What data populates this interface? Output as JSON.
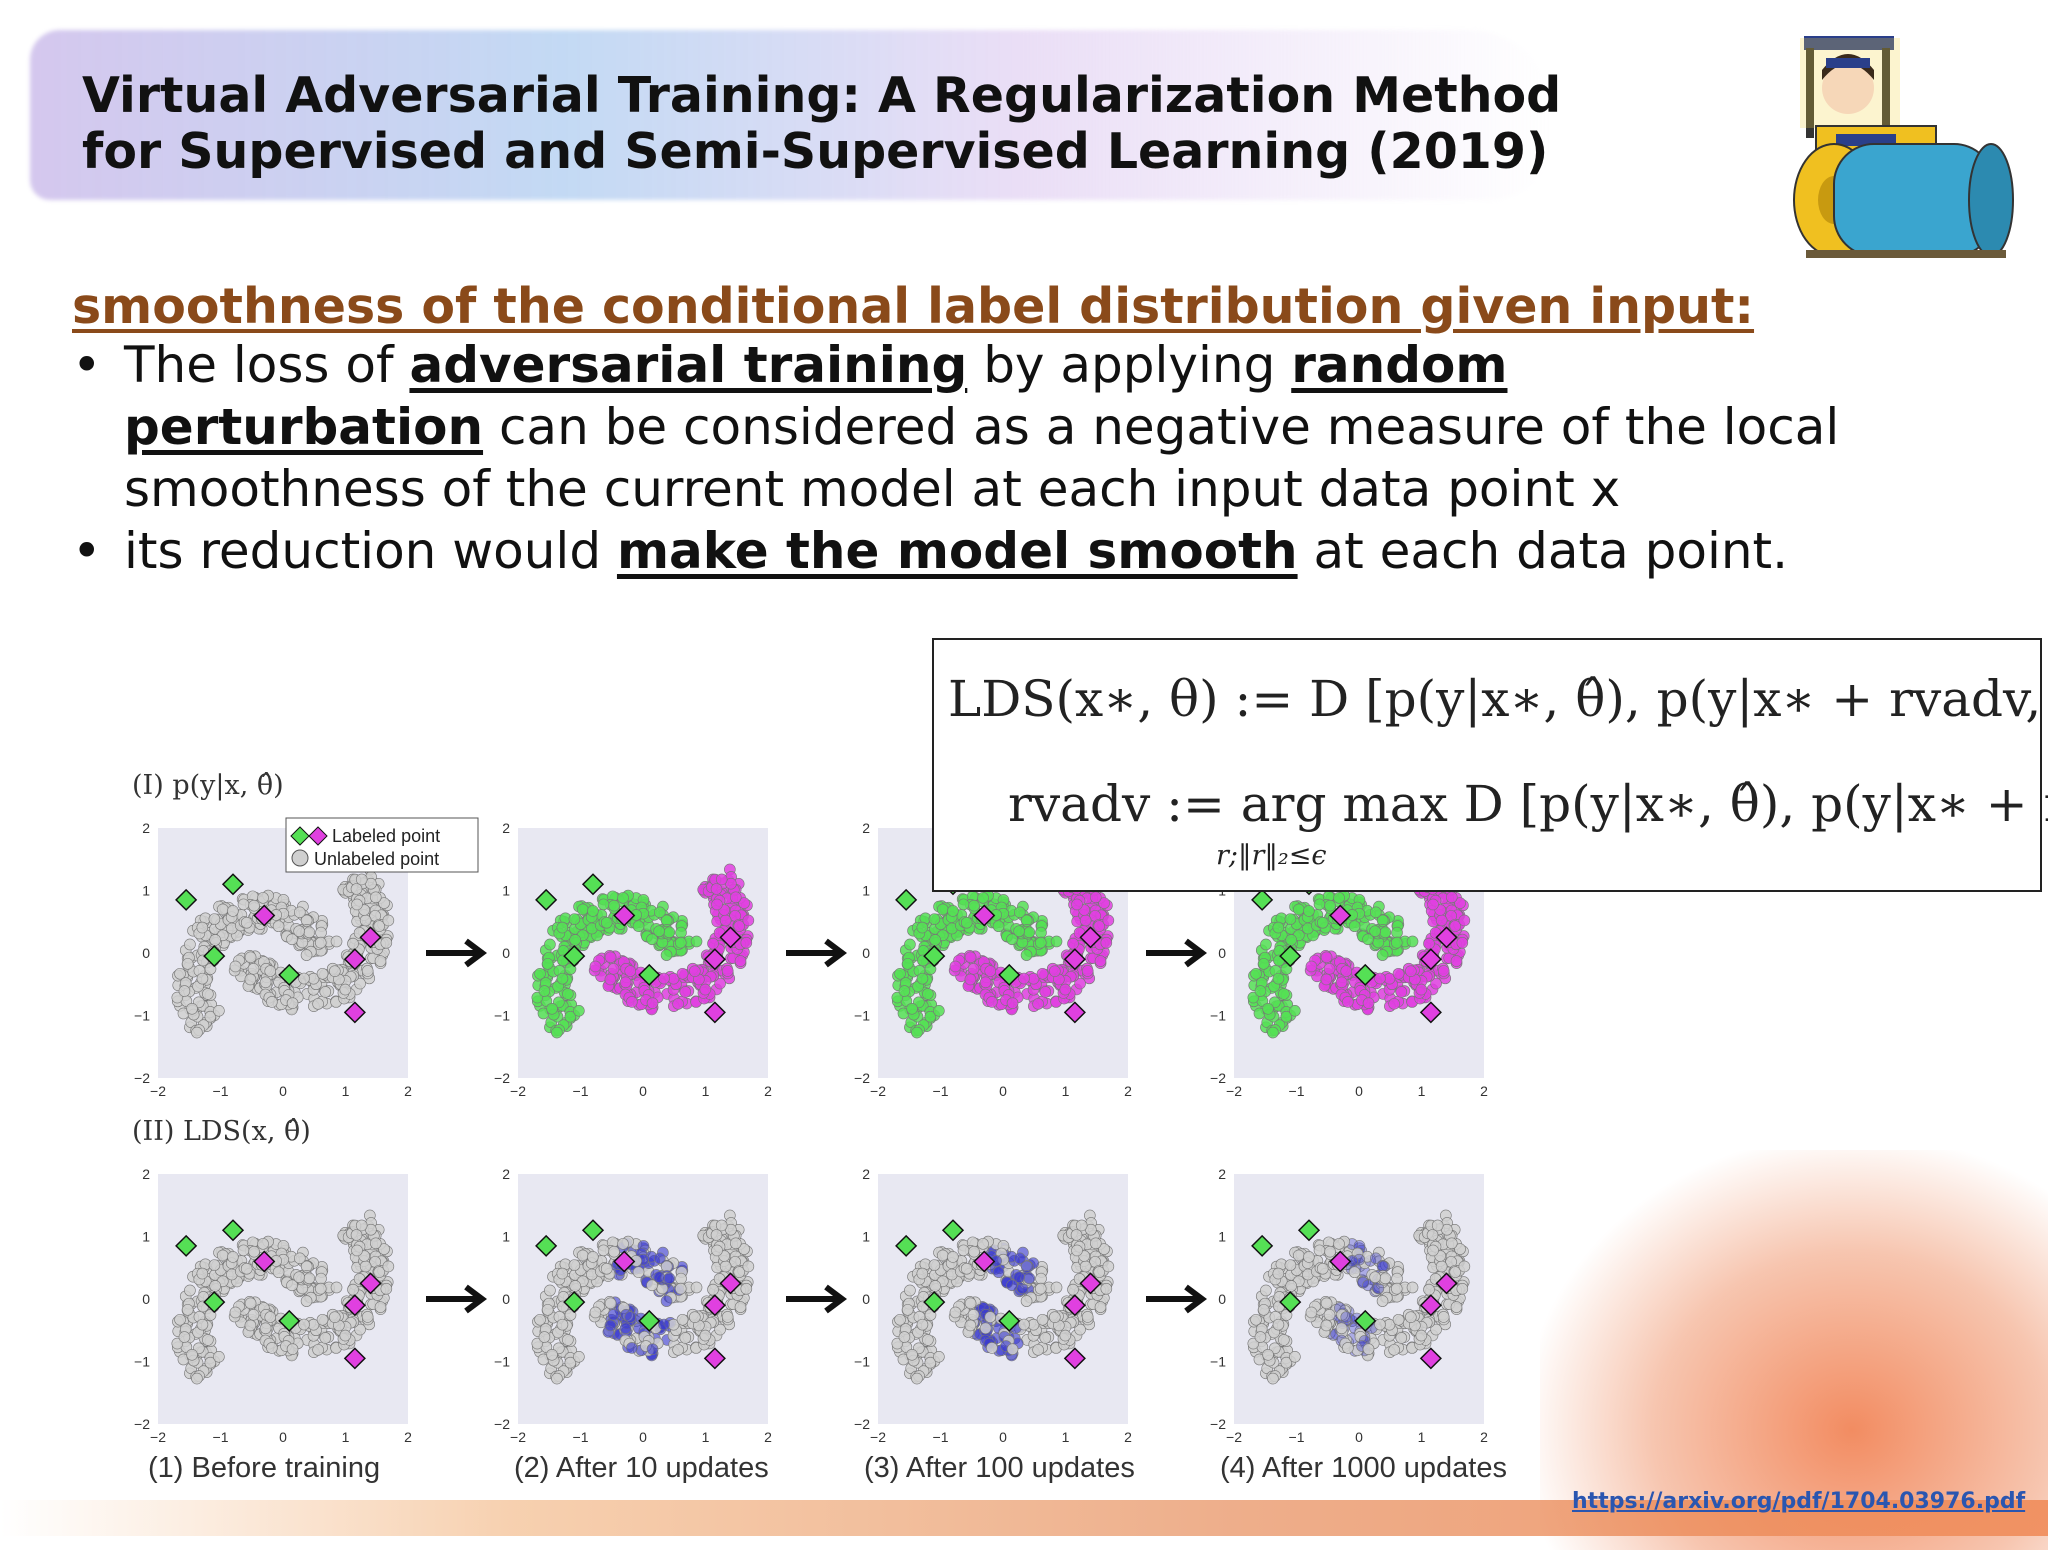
{
  "slide": {
    "title_line1": "Virtual Adversarial Training: A Regularization Method",
    "title_line2": "for Supervised and Semi-Supervised Learning (2019)",
    "heading": "smoothness of the conditional label distribution given input:",
    "bullet1": {
      "t1": "The loss of ",
      "b1": "adversarial training",
      "t2": " by applying ",
      "b2": "random perturbation",
      "t3": " can be considered as a negative measure of the local smoothness of the current model at each input data point x"
    },
    "bullet2": {
      "t1": "its reduction would ",
      "b1": "make the model smooth",
      "t2": " at each data point."
    },
    "link": "https://arxiv.org/pdf/1704.03976.pdf"
  },
  "formula": {
    "line1": "LDS(x∗, θ) := D [p(y|x∗, θ̂), p(y|x∗ + rvadv, θ)]",
    "line2": "rvadv := arg max D [p(y|x∗, θ̂), p(y|x∗ + r)] ,",
    "line2_sub": "r;‖r‖₂≤ϵ"
  },
  "figure": {
    "row1_label": "(I) p(y|x, θ̂)",
    "row2_label": "(II) LDS(x, θ̂)",
    "legend_labeled": "Labeled point",
    "legend_unlabeled": "Unlabeled point",
    "captions": [
      "(1) Before training",
      "(2) After 10 updates",
      "(3) After 100 updates",
      "(4) After 1000 updates"
    ],
    "ticks": [
      "−2",
      "−1",
      "0",
      "1",
      "2"
    ],
    "colors": {
      "class_a": "#55e055",
      "class_b": "#e040e0",
      "unlabeled": "#d0d0d0",
      "lds": "#3a3ad0",
      "plot_bg": "#e8e8f2"
    }
  }
}
